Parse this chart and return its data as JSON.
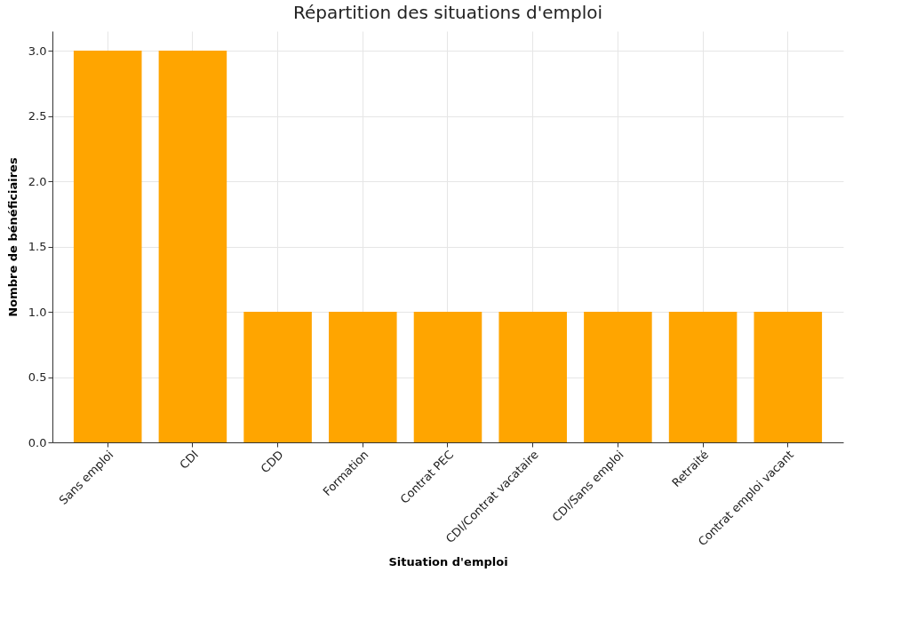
{
  "chart_data": {
    "type": "bar",
    "title": "Répartition des situations d'emploi",
    "xlabel": "Situation d'emploi",
    "ylabel": "Nombre de bénéficiaires",
    "categories": [
      "Sans emploi",
      "CDI",
      "CDD",
      "Formation",
      "Contrat PEC",
      "CDI/Contrat vacataire",
      "CDI/Sans emploi",
      "Retraité",
      "Contrat emploi vacant"
    ],
    "values": [
      3,
      3,
      1,
      1,
      1,
      1,
      1,
      1,
      1
    ],
    "color": "#ffa500",
    "ylim": [
      0,
      3.15
    ],
    "yticks": [
      {
        "value": 0,
        "label": "0.0"
      },
      {
        "value": 0.5,
        "label": "0.5"
      },
      {
        "value": 1,
        "label": "1.0"
      },
      {
        "value": 1.5,
        "label": "1.5"
      },
      {
        "value": 2,
        "label": "2.0"
      },
      {
        "value": 2.5,
        "label": "2.5"
      },
      {
        "value": 3,
        "label": "3.0"
      }
    ],
    "grid": true
  }
}
